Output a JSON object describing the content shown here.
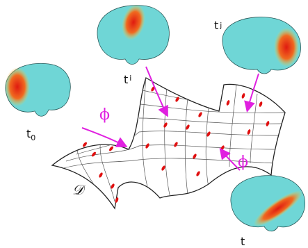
{
  "nodes": [
    {
      "label": "t",
      "subscript": "0"
    },
    {
      "label": "t",
      "subscript": "i"
    },
    {
      "label": "t",
      "subscript": "j"
    },
    {
      "label": "t"
    }
  ],
  "arrows": [
    {
      "label": "ϕ"
    },
    {
      "label": "ϕ"
    }
  ],
  "surface": {
    "label": "𝒟"
  }
}
